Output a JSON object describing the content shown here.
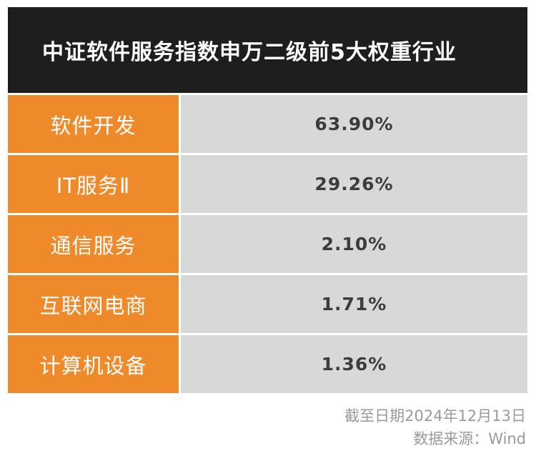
{
  "chart_data": {
    "type": "table",
    "title": "中证软件服务指数申万二级前5大权重行业",
    "categories": [
      "软件开发",
      "IT服务Ⅱ",
      "通信服务",
      "互联网电商",
      "计算机设备"
    ],
    "values": [
      63.9,
      29.26,
      2.1,
      1.71,
      1.36
    ],
    "value_labels": [
      "63.90%",
      "29.26%",
      "2.10%",
      "1.71%",
      "1.36%"
    ]
  },
  "footer": {
    "date_note": "截至日期2024年12月13日",
    "source": "数据来源：Wind"
  },
  "colors": {
    "title_bg": "#1e1e1e",
    "label_bg": "#ee8a2a",
    "value_bg": "#d8d8d8",
    "footer_text": "#9a9a9a"
  }
}
